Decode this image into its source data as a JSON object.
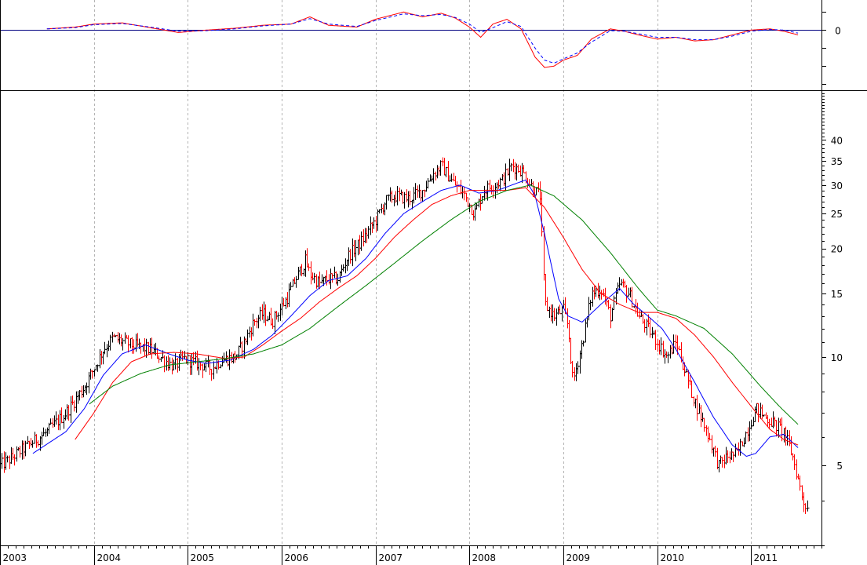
{
  "colors": {
    "background": "#ffffff",
    "grid": "#b4b4b4",
    "frame": "#000000",
    "bar_up": "#000000",
    "bar_down": "#ff0000",
    "ma_short": "#0000ff",
    "ma_mid": "#ff0000",
    "ma_long": "#008000",
    "osc_line": "#ff0000",
    "osc_signal": "#0000ff",
    "zero_line": "#000080"
  },
  "chart_data": [
    {
      "type": "line",
      "panel": "oscillator",
      "yticks": [
        0
      ],
      "ytick_labels": [
        "0"
      ],
      "ylim": [
        -1.0,
        0.5
      ],
      "grid": true,
      "series": [
        {
          "role": "line",
          "x": [
            2003.5,
            2003.8,
            2004.0,
            2004.3,
            2004.6,
            2004.9,
            2005.2,
            2005.5,
            2005.8,
            2006.1,
            2006.3,
            2006.5,
            2006.8,
            2007.0,
            2007.3,
            2007.5,
            2007.7,
            2007.85,
            2008.0,
            2008.12,
            2008.25,
            2008.4,
            2008.55,
            2008.7,
            2008.8,
            2008.9,
            2009.0,
            2009.15,
            2009.3,
            2009.5,
            2009.65,
            2009.8,
            2010.0,
            2010.2,
            2010.4,
            2010.6,
            2010.8,
            2011.0,
            2011.2,
            2011.35,
            2011.5
          ],
          "values": [
            0.02,
            0.05,
            0.1,
            0.12,
            0.04,
            -0.04,
            0.0,
            0.03,
            0.08,
            0.1,
            0.22,
            0.08,
            0.05,
            0.18,
            0.3,
            0.22,
            0.28,
            0.2,
            0.05,
            -0.12,
            0.1,
            0.18,
            0.02,
            -0.45,
            -0.62,
            -0.6,
            -0.5,
            -0.42,
            -0.15,
            0.02,
            -0.02,
            -0.08,
            -0.15,
            -0.12,
            -0.18,
            -0.16,
            -0.08,
            0.0,
            0.02,
            -0.02,
            -0.08
          ]
        },
        {
          "role": "signal",
          "x": [
            2003.5,
            2003.8,
            2004.0,
            2004.3,
            2004.6,
            2004.9,
            2005.2,
            2005.5,
            2005.8,
            2006.1,
            2006.3,
            2006.5,
            2006.8,
            2007.0,
            2007.3,
            2007.5,
            2007.7,
            2007.85,
            2008.0,
            2008.12,
            2008.25,
            2008.4,
            2008.55,
            2008.7,
            2008.8,
            2008.9,
            2009.0,
            2009.15,
            2009.3,
            2009.5,
            2009.65,
            2009.8,
            2010.0,
            2010.2,
            2010.4,
            2010.6,
            2010.8,
            2011.0,
            2011.2,
            2011.35,
            2011.5
          ],
          "values": [
            0.02,
            0.04,
            0.09,
            0.11,
            0.05,
            -0.02,
            -0.01,
            0.02,
            0.07,
            0.1,
            0.19,
            0.1,
            0.06,
            0.16,
            0.27,
            0.24,
            0.26,
            0.21,
            0.1,
            -0.04,
            0.04,
            0.14,
            0.06,
            -0.3,
            -0.5,
            -0.55,
            -0.48,
            -0.38,
            -0.2,
            -0.01,
            -0.02,
            -0.06,
            -0.12,
            -0.12,
            -0.16,
            -0.16,
            -0.1,
            -0.02,
            0.01,
            0.0,
            -0.05
          ]
        }
      ]
    },
    {
      "type": "bar",
      "panel": "price",
      "style": "ohlc",
      "yscale": "log",
      "yticks": [
        5,
        10,
        15,
        20,
        25,
        30,
        35,
        40
      ],
      "ylim": [
        3.0,
        55.0
      ],
      "xlim": [
        2003.0,
        2011.75
      ],
      "xticks": [
        2003,
        2004,
        2005,
        2006,
        2007,
        2008,
        2009,
        2010,
        2011
      ],
      "xtick_labels": [
        "2003",
        "2004",
        "2005",
        "2006",
        "2007",
        "2008",
        "2009",
        "2010",
        "2011"
      ],
      "grid": true,
      "price_path": {
        "x": [
          2003.0,
          2003.1,
          2003.3,
          2003.5,
          2003.7,
          2003.9,
          2004.1,
          2004.2,
          2004.4,
          2004.6,
          2004.75,
          2004.85,
          2004.95,
          2005.1,
          2005.25,
          2005.35,
          2005.5,
          2005.6,
          2005.7,
          2005.8,
          2005.9,
          2006.05,
          2006.15,
          2006.25,
          2006.3,
          2006.4,
          2006.5,
          2006.6,
          2006.7,
          2006.85,
          2007.0,
          2007.1,
          2007.2,
          2007.35,
          2007.5,
          2007.6,
          2007.7,
          2007.8,
          2007.95,
          2008.05,
          2008.15,
          2008.25,
          2008.35,
          2008.45,
          2008.55,
          2008.65,
          2008.75,
          2008.8,
          2008.9,
          2009.0,
          2009.05,
          2009.1,
          2009.2,
          2009.3,
          2009.4,
          2009.5,
          2009.6,
          2009.7,
          2009.8,
          2009.9,
          2010.0,
          2010.1,
          2010.2,
          2010.3,
          2010.4,
          2010.55,
          2010.65,
          2010.75,
          2010.85,
          2010.95,
          2011.05,
          2011.15,
          2011.25,
          2011.35,
          2011.45,
          2011.55,
          2011.6
        ],
        "close": [
          5.0,
          5.2,
          5.7,
          6.2,
          7.0,
          8.3,
          10.5,
          11.3,
          10.8,
          10.5,
          9.8,
          9.4,
          9.9,
          9.6,
          9.3,
          9.8,
          10.0,
          11.0,
          12.5,
          13.2,
          12.6,
          14.5,
          16.5,
          18.5,
          17.0,
          16.0,
          16.5,
          16.5,
          19.0,
          21.0,
          24.0,
          27.0,
          28.0,
          27.5,
          29.0,
          32.0,
          34.0,
          31.0,
          28.0,
          25.0,
          29.0,
          30.0,
          31.0,
          34.0,
          33.0,
          30.0,
          28.0,
          14.0,
          13.0,
          13.5,
          12.0,
          8.5,
          11.0,
          15.0,
          15.5,
          13.0,
          16.0,
          15.0,
          13.0,
          12.0,
          11.0,
          10.0,
          11.0,
          9.0,
          7.5,
          6.0,
          5.0,
          5.3,
          5.4,
          6.2,
          7.2,
          6.8,
          6.5,
          6.2,
          5.2,
          4.0,
          3.8
        ]
      },
      "series": [
        {
          "role": "ma_short",
          "x": [
            2003.35,
            2003.7,
            2003.9,
            2004.1,
            2004.3,
            2004.55,
            2004.8,
            2005.0,
            2005.2,
            2005.45,
            2005.7,
            2005.9,
            2006.1,
            2006.3,
            2006.5,
            2006.7,
            2006.9,
            2007.1,
            2007.3,
            2007.5,
            2007.7,
            2007.9,
            2008.1,
            2008.3,
            2008.45,
            2008.6,
            2008.7,
            2008.8,
            2008.95,
            2009.05,
            2009.2,
            2009.4,
            2009.6,
            2009.75,
            2009.9,
            2010.05,
            2010.2,
            2010.4,
            2010.6,
            2010.8,
            2010.95,
            2011.05,
            2011.2,
            2011.35,
            2011.5
          ],
          "values": [
            5.4,
            6.2,
            7.2,
            8.9,
            10.2,
            10.8,
            10.2,
            9.8,
            9.6,
            9.8,
            10.5,
            11.5,
            13.0,
            14.8,
            16.3,
            16.8,
            18.8,
            22.0,
            25.0,
            27.0,
            29.0,
            30.0,
            28.5,
            29.0,
            30.0,
            31.0,
            28.0,
            22.0,
            14.5,
            13.0,
            12.5,
            14.0,
            15.5,
            14.0,
            13.0,
            12.0,
            10.5,
            8.5,
            6.8,
            5.7,
            5.3,
            5.4,
            6.0,
            6.1,
            5.6
          ]
        },
        {
          "role": "ma_mid",
          "x": [
            2003.8,
            2004.0,
            2004.2,
            2004.4,
            2004.6,
            2004.85,
            2005.1,
            2005.4,
            2005.6,
            2005.8,
            2006.0,
            2006.2,
            2006.4,
            2006.6,
            2006.8,
            2007.0,
            2007.2,
            2007.4,
            2007.6,
            2007.8,
            2008.0,
            2008.2,
            2008.4,
            2008.6,
            2008.8,
            2009.0,
            2009.2,
            2009.4,
            2009.6,
            2009.8,
            2010.0,
            2010.2,
            2010.4,
            2010.6,
            2010.8,
            2011.0,
            2011.2,
            2011.35,
            2011.5
          ],
          "values": [
            5.9,
            7.0,
            8.5,
            9.7,
            10.2,
            10.3,
            10.2,
            9.9,
            10.0,
            10.8,
            11.8,
            12.8,
            14.2,
            15.5,
            16.8,
            18.8,
            21.5,
            24.0,
            26.5,
            28.0,
            29.0,
            29.0,
            29.0,
            29.5,
            26.0,
            21.5,
            17.5,
            15.0,
            14.0,
            13.3,
            13.3,
            12.8,
            11.5,
            10.0,
            8.5,
            7.3,
            6.3,
            5.9,
            5.7
          ]
        },
        {
          "role": "ma_long",
          "x": [
            2003.95,
            2004.2,
            2004.5,
            2004.8,
            2005.1,
            2005.4,
            2005.7,
            2006.0,
            2006.3,
            2006.6,
            2006.9,
            2007.2,
            2007.5,
            2007.8,
            2008.1,
            2008.4,
            2008.65,
            2008.9,
            2009.2,
            2009.5,
            2009.8,
            2010.0,
            2010.2,
            2010.5,
            2010.8,
            2011.1,
            2011.3,
            2011.5
          ],
          "values": [
            7.4,
            8.3,
            9.0,
            9.5,
            9.7,
            9.9,
            10.2,
            10.8,
            12.0,
            13.8,
            15.8,
            18.2,
            21.0,
            24.0,
            27.0,
            29.0,
            30.0,
            28.0,
            24.0,
            19.5,
            15.5,
            13.5,
            13.0,
            12.0,
            10.2,
            8.3,
            7.3,
            6.5
          ]
        }
      ]
    }
  ]
}
